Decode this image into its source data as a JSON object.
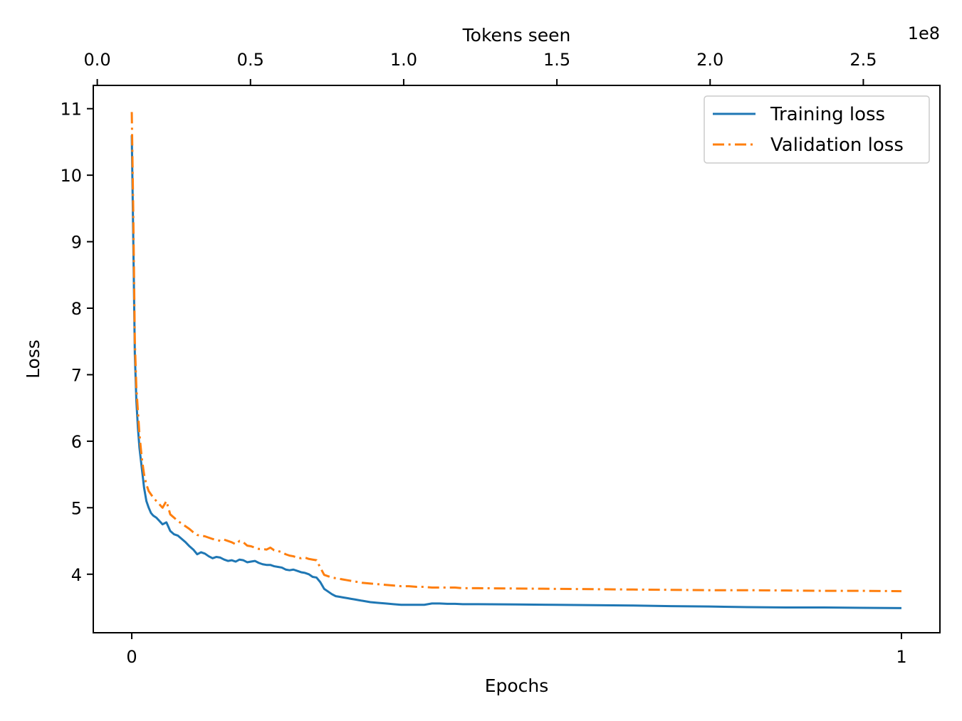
{
  "chart_data": {
    "type": "line",
    "title": "",
    "xlabel": "Epochs",
    "ylabel": "Loss",
    "x2label": "Tokens seen",
    "x2_offset_label": "1e8",
    "xlim": [
      -0.05,
      1.05
    ],
    "ylim": [
      3.12,
      11.35
    ],
    "x2lim": [
      -1.3,
      275
    ],
    "xticks": [
      0,
      1
    ],
    "xtick_labels": [
      "0",
      "1"
    ],
    "yticks": [
      4,
      5,
      6,
      7,
      8,
      9,
      10,
      11
    ],
    "ytick_labels": [
      "4",
      "5",
      "6",
      "7",
      "8",
      "9",
      "10",
      "11"
    ],
    "x2ticks": [
      0,
      50,
      100,
      150,
      200,
      250
    ],
    "x2tick_labels": [
      "0.0",
      "0.5",
      "1.0",
      "1.5",
      "2.0",
      "2.5"
    ],
    "grid": false,
    "legend": {
      "position": "top-right"
    },
    "series": [
      {
        "name": "Training loss",
        "color": "#1f77b4",
        "style": "solid",
        "x": [
          0,
          0.002,
          0.004,
          0.006,
          0.008,
          0.01,
          0.013,
          0.016,
          0.019,
          0.022,
          0.025,
          0.028,
          0.032,
          0.036,
          0.04,
          0.045,
          0.05,
          0.055,
          0.06,
          0.065,
          0.07,
          0.075,
          0.08,
          0.085,
          0.09,
          0.095,
          0.1,
          0.105,
          0.11,
          0.115,
          0.12,
          0.125,
          0.13,
          0.135,
          0.14,
          0.145,
          0.15,
          0.155,
          0.16,
          0.165,
          0.17,
          0.175,
          0.18,
          0.185,
          0.19,
          0.195,
          0.2,
          0.205,
          0.21,
          0.215,
          0.22,
          0.225,
          0.23,
          0.235,
          0.24,
          0.245,
          0.25,
          0.255,
          0.26,
          0.265,
          0.27,
          0.275,
          0.28,
          0.285,
          0.29,
          0.295,
          0.3,
          0.31,
          0.32,
          0.33,
          0.34,
          0.35,
          0.36,
          0.37,
          0.38,
          0.39,
          0.4,
          0.41,
          0.42,
          0.43,
          0.44,
          0.45,
          0.5,
          0.55,
          0.6,
          0.65,
          0.7,
          0.75,
          0.8,
          0.85,
          0.9,
          0.95,
          1.0
        ],
        "y": [
          10.6,
          9.0,
          7.3,
          6.6,
          6.2,
          5.9,
          5.6,
          5.3,
          5.1,
          5.0,
          4.92,
          4.88,
          4.85,
          4.8,
          4.75,
          4.78,
          4.65,
          4.6,
          4.58,
          4.53,
          4.48,
          4.42,
          4.37,
          4.3,
          4.33,
          4.31,
          4.27,
          4.24,
          4.26,
          4.25,
          4.22,
          4.2,
          4.21,
          4.19,
          4.22,
          4.21,
          4.18,
          4.19,
          4.2,
          4.17,
          4.15,
          4.14,
          4.14,
          4.12,
          4.11,
          4.1,
          4.07,
          4.06,
          4.07,
          4.05,
          4.03,
          4.02,
          4.0,
          3.96,
          3.95,
          3.88,
          3.78,
          3.74,
          3.7,
          3.67,
          3.66,
          3.65,
          3.64,
          3.63,
          3.62,
          3.61,
          3.6,
          3.58,
          3.57,
          3.56,
          3.55,
          3.54,
          3.54,
          3.54,
          3.54,
          3.56,
          3.56,
          3.555,
          3.555,
          3.55,
          3.55,
          3.55,
          3.545,
          3.54,
          3.535,
          3.53,
          3.52,
          3.515,
          3.505,
          3.5,
          3.5,
          3.495,
          3.49
        ]
      },
      {
        "name": "Validation loss",
        "color": "#ff7f0e",
        "style": "dashdot",
        "x": [
          0,
          0.002,
          0.004,
          0.006,
          0.008,
          0.01,
          0.013,
          0.016,
          0.019,
          0.022,
          0.025,
          0.028,
          0.032,
          0.036,
          0.04,
          0.045,
          0.05,
          0.055,
          0.06,
          0.065,
          0.07,
          0.075,
          0.08,
          0.085,
          0.09,
          0.095,
          0.1,
          0.105,
          0.11,
          0.115,
          0.12,
          0.125,
          0.13,
          0.135,
          0.14,
          0.145,
          0.15,
          0.155,
          0.16,
          0.165,
          0.17,
          0.175,
          0.18,
          0.185,
          0.19,
          0.195,
          0.2,
          0.205,
          0.21,
          0.215,
          0.22,
          0.225,
          0.23,
          0.235,
          0.24,
          0.245,
          0.25,
          0.255,
          0.26,
          0.265,
          0.27,
          0.275,
          0.28,
          0.285,
          0.29,
          0.295,
          0.3,
          0.31,
          0.32,
          0.33,
          0.34,
          0.35,
          0.36,
          0.37,
          0.38,
          0.39,
          0.4,
          0.41,
          0.42,
          0.43,
          0.44,
          0.45,
          0.5,
          0.55,
          0.6,
          0.65,
          0.7,
          0.75,
          0.8,
          0.85,
          0.9,
          0.95,
          1.0
        ],
        "y": [
          10.95,
          9.4,
          7.5,
          6.8,
          6.45,
          6.1,
          5.75,
          5.5,
          5.35,
          5.25,
          5.2,
          5.15,
          5.1,
          5.05,
          5.0,
          5.1,
          4.9,
          4.85,
          4.8,
          4.76,
          4.72,
          4.68,
          4.63,
          4.59,
          4.58,
          4.57,
          4.55,
          4.53,
          4.52,
          4.5,
          4.52,
          4.5,
          4.48,
          4.45,
          4.5,
          4.48,
          4.43,
          4.42,
          4.4,
          4.38,
          4.38,
          4.37,
          4.4,
          4.36,
          4.35,
          4.33,
          4.3,
          4.28,
          4.27,
          4.25,
          4.24,
          4.25,
          4.23,
          4.22,
          4.21,
          4.1,
          3.99,
          3.97,
          3.95,
          3.94,
          3.93,
          3.92,
          3.91,
          3.9,
          3.89,
          3.88,
          3.87,
          3.86,
          3.85,
          3.84,
          3.83,
          3.82,
          3.82,
          3.81,
          3.81,
          3.8,
          3.8,
          3.8,
          3.8,
          3.79,
          3.79,
          3.79,
          3.785,
          3.78,
          3.775,
          3.77,
          3.765,
          3.76,
          3.76,
          3.755,
          3.75,
          3.75,
          3.745
        ]
      }
    ]
  }
}
